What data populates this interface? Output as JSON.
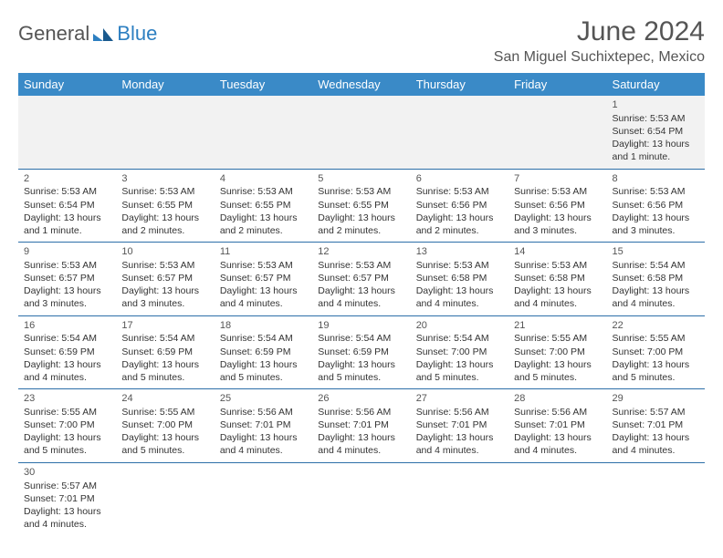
{
  "brand": {
    "text1": "General",
    "text2": "Blue"
  },
  "title": "June 2024",
  "location": "San Miguel Suchixtepec, Mexico",
  "day_headers": [
    "Sunday",
    "Monday",
    "Tuesday",
    "Wednesday",
    "Thursday",
    "Friday",
    "Saturday"
  ],
  "colors": {
    "header_bg": "#3a8ac7",
    "header_text": "#ffffff",
    "row_border": "#2d6fa8",
    "alt_bg": "#f2f2f2",
    "text": "#333333",
    "title_color": "#555555"
  },
  "weeks": [
    [
      {
        "day": "",
        "sunrise": "",
        "sunset": "",
        "daylight": ""
      },
      {
        "day": "",
        "sunrise": "",
        "sunset": "",
        "daylight": ""
      },
      {
        "day": "",
        "sunrise": "",
        "sunset": "",
        "daylight": ""
      },
      {
        "day": "",
        "sunrise": "",
        "sunset": "",
        "daylight": ""
      },
      {
        "day": "",
        "sunrise": "",
        "sunset": "",
        "daylight": ""
      },
      {
        "day": "",
        "sunrise": "",
        "sunset": "",
        "daylight": ""
      },
      {
        "day": "1",
        "sunrise": "Sunrise: 5:53 AM",
        "sunset": "Sunset: 6:54 PM",
        "daylight": "Daylight: 13 hours and 1 minute."
      }
    ],
    [
      {
        "day": "2",
        "sunrise": "Sunrise: 5:53 AM",
        "sunset": "Sunset: 6:54 PM",
        "daylight": "Daylight: 13 hours and 1 minute."
      },
      {
        "day": "3",
        "sunrise": "Sunrise: 5:53 AM",
        "sunset": "Sunset: 6:55 PM",
        "daylight": "Daylight: 13 hours and 2 minutes."
      },
      {
        "day": "4",
        "sunrise": "Sunrise: 5:53 AM",
        "sunset": "Sunset: 6:55 PM",
        "daylight": "Daylight: 13 hours and 2 minutes."
      },
      {
        "day": "5",
        "sunrise": "Sunrise: 5:53 AM",
        "sunset": "Sunset: 6:55 PM",
        "daylight": "Daylight: 13 hours and 2 minutes."
      },
      {
        "day": "6",
        "sunrise": "Sunrise: 5:53 AM",
        "sunset": "Sunset: 6:56 PM",
        "daylight": "Daylight: 13 hours and 2 minutes."
      },
      {
        "day": "7",
        "sunrise": "Sunrise: 5:53 AM",
        "sunset": "Sunset: 6:56 PM",
        "daylight": "Daylight: 13 hours and 3 minutes."
      },
      {
        "day": "8",
        "sunrise": "Sunrise: 5:53 AM",
        "sunset": "Sunset: 6:56 PM",
        "daylight": "Daylight: 13 hours and 3 minutes."
      }
    ],
    [
      {
        "day": "9",
        "sunrise": "Sunrise: 5:53 AM",
        "sunset": "Sunset: 6:57 PM",
        "daylight": "Daylight: 13 hours and 3 minutes."
      },
      {
        "day": "10",
        "sunrise": "Sunrise: 5:53 AM",
        "sunset": "Sunset: 6:57 PM",
        "daylight": "Daylight: 13 hours and 3 minutes."
      },
      {
        "day": "11",
        "sunrise": "Sunrise: 5:53 AM",
        "sunset": "Sunset: 6:57 PM",
        "daylight": "Daylight: 13 hours and 4 minutes."
      },
      {
        "day": "12",
        "sunrise": "Sunrise: 5:53 AM",
        "sunset": "Sunset: 6:57 PM",
        "daylight": "Daylight: 13 hours and 4 minutes."
      },
      {
        "day": "13",
        "sunrise": "Sunrise: 5:53 AM",
        "sunset": "Sunset: 6:58 PM",
        "daylight": "Daylight: 13 hours and 4 minutes."
      },
      {
        "day": "14",
        "sunrise": "Sunrise: 5:53 AM",
        "sunset": "Sunset: 6:58 PM",
        "daylight": "Daylight: 13 hours and 4 minutes."
      },
      {
        "day": "15",
        "sunrise": "Sunrise: 5:54 AM",
        "sunset": "Sunset: 6:58 PM",
        "daylight": "Daylight: 13 hours and 4 minutes."
      }
    ],
    [
      {
        "day": "16",
        "sunrise": "Sunrise: 5:54 AM",
        "sunset": "Sunset: 6:59 PM",
        "daylight": "Daylight: 13 hours and 4 minutes."
      },
      {
        "day": "17",
        "sunrise": "Sunrise: 5:54 AM",
        "sunset": "Sunset: 6:59 PM",
        "daylight": "Daylight: 13 hours and 5 minutes."
      },
      {
        "day": "18",
        "sunrise": "Sunrise: 5:54 AM",
        "sunset": "Sunset: 6:59 PM",
        "daylight": "Daylight: 13 hours and 5 minutes."
      },
      {
        "day": "19",
        "sunrise": "Sunrise: 5:54 AM",
        "sunset": "Sunset: 6:59 PM",
        "daylight": "Daylight: 13 hours and 5 minutes."
      },
      {
        "day": "20",
        "sunrise": "Sunrise: 5:54 AM",
        "sunset": "Sunset: 7:00 PM",
        "daylight": "Daylight: 13 hours and 5 minutes."
      },
      {
        "day": "21",
        "sunrise": "Sunrise: 5:55 AM",
        "sunset": "Sunset: 7:00 PM",
        "daylight": "Daylight: 13 hours and 5 minutes."
      },
      {
        "day": "22",
        "sunrise": "Sunrise: 5:55 AM",
        "sunset": "Sunset: 7:00 PM",
        "daylight": "Daylight: 13 hours and 5 minutes."
      }
    ],
    [
      {
        "day": "23",
        "sunrise": "Sunrise: 5:55 AM",
        "sunset": "Sunset: 7:00 PM",
        "daylight": "Daylight: 13 hours and 5 minutes."
      },
      {
        "day": "24",
        "sunrise": "Sunrise: 5:55 AM",
        "sunset": "Sunset: 7:00 PM",
        "daylight": "Daylight: 13 hours and 5 minutes."
      },
      {
        "day": "25",
        "sunrise": "Sunrise: 5:56 AM",
        "sunset": "Sunset: 7:01 PM",
        "daylight": "Daylight: 13 hours and 4 minutes."
      },
      {
        "day": "26",
        "sunrise": "Sunrise: 5:56 AM",
        "sunset": "Sunset: 7:01 PM",
        "daylight": "Daylight: 13 hours and 4 minutes."
      },
      {
        "day": "27",
        "sunrise": "Sunrise: 5:56 AM",
        "sunset": "Sunset: 7:01 PM",
        "daylight": "Daylight: 13 hours and 4 minutes."
      },
      {
        "day": "28",
        "sunrise": "Sunrise: 5:56 AM",
        "sunset": "Sunset: 7:01 PM",
        "daylight": "Daylight: 13 hours and 4 minutes."
      },
      {
        "day": "29",
        "sunrise": "Sunrise: 5:57 AM",
        "sunset": "Sunset: 7:01 PM",
        "daylight": "Daylight: 13 hours and 4 minutes."
      }
    ],
    [
      {
        "day": "30",
        "sunrise": "Sunrise: 5:57 AM",
        "sunset": "Sunset: 7:01 PM",
        "daylight": "Daylight: 13 hours and 4 minutes."
      },
      {
        "day": "",
        "sunrise": "",
        "sunset": "",
        "daylight": ""
      },
      {
        "day": "",
        "sunrise": "",
        "sunset": "",
        "daylight": ""
      },
      {
        "day": "",
        "sunrise": "",
        "sunset": "",
        "daylight": ""
      },
      {
        "day": "",
        "sunrise": "",
        "sunset": "",
        "daylight": ""
      },
      {
        "day": "",
        "sunrise": "",
        "sunset": "",
        "daylight": ""
      },
      {
        "day": "",
        "sunrise": "",
        "sunset": "",
        "daylight": ""
      }
    ]
  ]
}
